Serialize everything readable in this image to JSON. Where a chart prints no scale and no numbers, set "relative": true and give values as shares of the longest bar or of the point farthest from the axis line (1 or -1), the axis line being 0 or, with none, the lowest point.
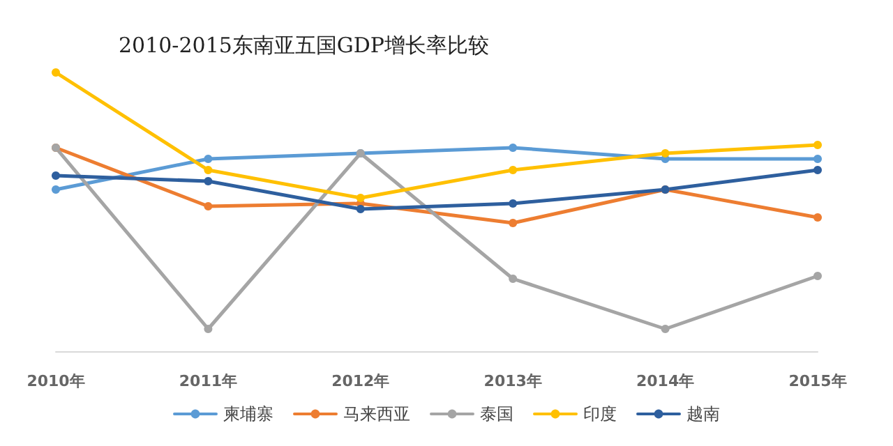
{
  "chart_data": {
    "type": "line",
    "title": "2010-2015东南亚五国GDP增长率比较",
    "relative": true,
    "categories": [
      "2010年",
      "2011年",
      "2012年",
      "2013年",
      "2014年",
      "2015年"
    ],
    "series": [
      {
        "name": "柬埔寨",
        "color": "#5b9bd5",
        "values": [
          0.58,
          0.69,
          0.71,
          0.73,
          0.69,
          0.69
        ]
      },
      {
        "name": "马来西亚",
        "color": "#ed7d31",
        "values": [
          0.73,
          0.52,
          0.53,
          0.46,
          0.58,
          0.48
        ]
      },
      {
        "name": "泰国",
        "color": "#a5a5a5",
        "values": [
          0.73,
          0.08,
          0.71,
          0.26,
          0.08,
          0.27
        ]
      },
      {
        "name": "印度",
        "color": "#ffc000",
        "values": [
          1,
          0.65,
          0.55,
          0.65,
          0.71,
          0.74
        ]
      },
      {
        "name": "越南",
        "color": "#2e5f9e",
        "values": [
          0.63,
          0.61,
          0.51,
          0.53,
          0.58,
          0.65
        ]
      }
    ],
    "legend": "bottom",
    "marker": "circle",
    "grid": false,
    "line_style": "solid"
  }
}
